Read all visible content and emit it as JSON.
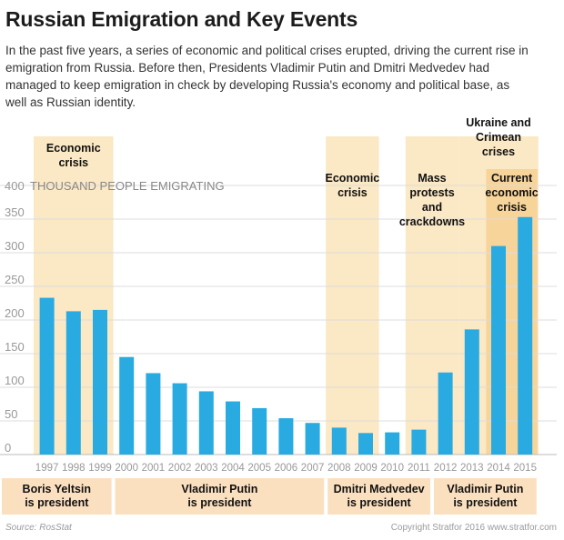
{
  "title": "Russian Emigration and Key Events",
  "subtitle": "In the past five years, a series of economic and political crises erupted, driving the current rise in emigration from Russia. Before then, Presidents Vladimir Putin and Dmitri Medvedev had managed to keep emigration in check by developing Russia's economy and political base, as well as Russian identity.",
  "source": "Source: RosStat",
  "credit": "Copyright Stratfor 2016   www.stratfor.com",
  "colors": {
    "bar": "#29abe2",
    "event_band": "#fbe8c4",
    "event_band_strong": "#f7d49a",
    "president_band": "#fbe0c0",
    "grid": "#dddddd",
    "tick_text": "#999999",
    "label_text": "#111111"
  },
  "chart_data": {
    "type": "bar",
    "unit_label": "THOUSAND PEOPLE EMIGRATING",
    "categories": [
      "1997",
      "1998",
      "1999",
      "2000",
      "2001",
      "2002",
      "2003",
      "2004",
      "2005",
      "2006",
      "2007",
      "2008",
      "2009",
      "2010",
      "2011",
      "2012",
      "2013",
      "2014",
      "2015"
    ],
    "values": [
      233,
      213,
      215,
      145,
      121,
      106,
      94,
      79,
      69,
      54,
      47,
      40,
      32,
      33,
      37,
      122,
      186,
      310,
      353
    ],
    "ylim": [
      0,
      400
    ],
    "yticks": [
      0,
      50,
      100,
      150,
      200,
      250,
      300,
      350,
      400
    ],
    "grid": true,
    "events": [
      {
        "label": "Economic crisis",
        "lines": [
          "Economic",
          "crisis"
        ],
        "from": "1997",
        "to": "1999",
        "style": "light"
      },
      {
        "label": "Economic crisis",
        "lines": [
          "Economic",
          "crisis"
        ],
        "from": "2008",
        "to": "2009",
        "style": "light"
      },
      {
        "label": "Mass protests and crackdowns",
        "lines": [
          "Mass",
          "protests",
          "and",
          "crackdowns"
        ],
        "from": "2011",
        "to": "2012",
        "style": "light"
      },
      {
        "label": "Ukraine and Crimean crises",
        "lines": [
          "Ukraine and",
          "Crimean",
          "crises"
        ],
        "from": "2013",
        "to": "2015",
        "style": "light"
      },
      {
        "label": "Current economic crisis",
        "lines": [
          "Current",
          "economic",
          "crisis"
        ],
        "from": "2014",
        "to": "2015",
        "style": "strong"
      }
    ],
    "presidents": [
      {
        "lines": [
          "Boris Yeltsin",
          "is president"
        ],
        "from": "1997",
        "to": "1999"
      },
      {
        "lines": [
          "Vladimir Putin",
          "is president"
        ],
        "from": "2000",
        "to": "2007"
      },
      {
        "lines": [
          "Dmitri Medvedev",
          "is president"
        ],
        "from": "2008",
        "to": "2011"
      },
      {
        "lines": [
          "Vladimir Putin",
          "is president"
        ],
        "from": "2012",
        "to": "2015"
      }
    ]
  }
}
